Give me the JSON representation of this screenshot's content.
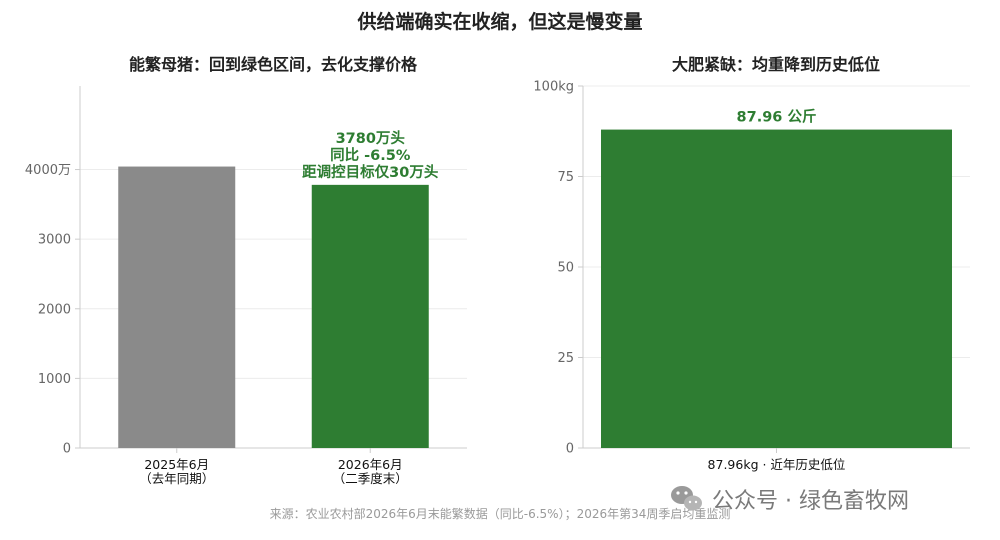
{
  "figure": {
    "title": "供给端确实在收缩，但这是慢变量",
    "source": "来源：农业农村部2026年6月末能繁数据（同比-6.5%）；2026年第34周季启均重监测",
    "watermark": "公众号 · 绿色畜牧网"
  },
  "colors": {
    "gray_bar": "#8a8a8a",
    "green_bar": "#2e7d32",
    "annotation": "#2e7d32",
    "grid": "#ececec",
    "axis": "#cccccc"
  },
  "icons": {
    "watermark": "wechat-icon"
  },
  "chart_data": [
    {
      "type": "bar",
      "title": "能繁母猪：回到绿色区间，去化支撑价格",
      "categories": [
        [
          "2025年6月",
          "（去年同期）"
        ],
        [
          "2026年6月",
          "（二季度末）"
        ]
      ],
      "values": [
        4043,
        3780
      ],
      "bar_colors": [
        "#8a8a8a",
        "#2e7d32"
      ],
      "ylim": [
        0,
        5200
      ],
      "yticks": [
        0,
        1000,
        2000,
        3000,
        4000
      ],
      "ytick_labels": [
        "0",
        "1000",
        "2000",
        "3000",
        "4000万"
      ],
      "grid": true,
      "annotation": {
        "bar_index": 1,
        "lines": [
          "3780万头",
          "同比 -6.5%",
          "距调控目标仅30万头"
        ]
      }
    },
    {
      "type": "bar",
      "title": "大肥紧缺：均重降到历史低位",
      "categories": [
        [
          "87.96kg · 近年历史低位"
        ]
      ],
      "values": [
        87.96
      ],
      "bar_colors": [
        "#2e7d32"
      ],
      "ylim": [
        0,
        100
      ],
      "yticks": [
        0,
        25,
        50,
        75,
        100
      ],
      "ytick_labels": [
        "0",
        "25",
        "50",
        "75",
        "100kg"
      ],
      "grid": true,
      "annotation": {
        "bar_index": 0,
        "lines": [
          "87.96 公斤"
        ]
      }
    }
  ]
}
